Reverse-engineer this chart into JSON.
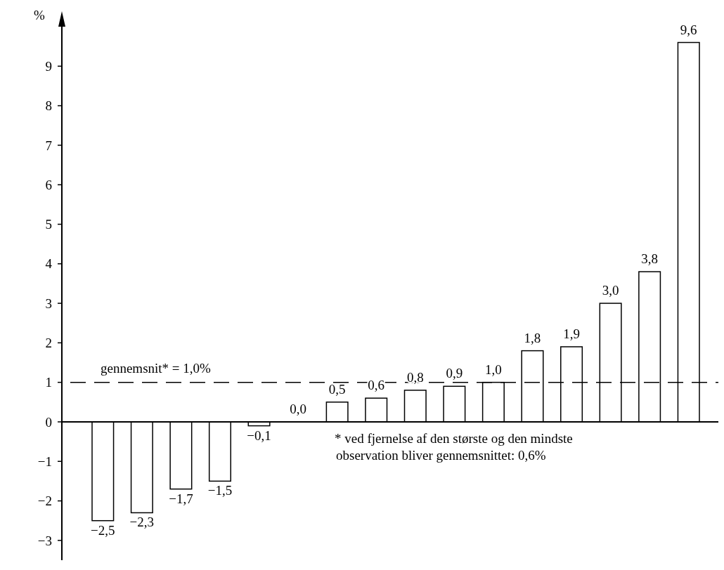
{
  "chart_data": {
    "type": "bar",
    "ylabel": "%",
    "categories": [
      null,
      null,
      null,
      null,
      null,
      null,
      null,
      null,
      null,
      null,
      null,
      null,
      null,
      null,
      null,
      null
    ],
    "values": [
      -2.5,
      -2.3,
      -1.7,
      -1.5,
      -0.1,
      0.0,
      0.5,
      0.6,
      0.8,
      0.9,
      1.0,
      1.8,
      1.9,
      3.0,
      3.8,
      9.6
    ],
    "value_labels": [
      "−2,5",
      "−2,3",
      "−1,7",
      "−1,5",
      "−0,1",
      "0,0",
      "0,5",
      "0,6",
      "0,8",
      "0,9",
      "1,0",
      "1,8",
      "1,9",
      "3,0",
      "3,8",
      "9,6"
    ],
    "color": "#ffffff",
    "ylim": [
      -3.5,
      10
    ],
    "yticks": [
      {
        "value": -3,
        "label": "−3"
      },
      {
        "value": -2,
        "label": "−2"
      },
      {
        "value": -1,
        "label": "−1"
      },
      0,
      1,
      2,
      3,
      4,
      5,
      6,
      7,
      8,
      9
    ],
    "ref_lines": [
      {
        "axis": "y",
        "value": 1,
        "label": "gennemsnit* = 1,0%",
        "line_style": "dashed"
      }
    ],
    "annotations": [
      "* ved fjernelse af den største og den mindste observation bliver gennemsnittet: 0,6%"
    ]
  }
}
